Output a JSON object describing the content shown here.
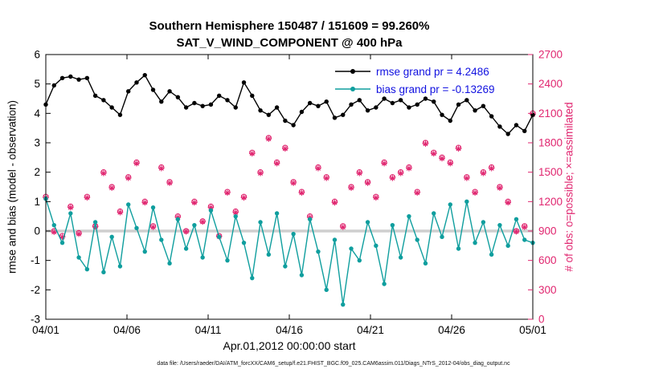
{
  "title": {
    "line1": "Southern Hemisphere 150487 / 151609 = 99.260%",
    "line2": "SAT_V_WIND_COMPONENT @ 400 hPa"
  },
  "axes": {
    "xlabel": "Apr.01,2012 00:00:00 start",
    "ylabel_left": "rmse and bias (model - observation)",
    "ylabel_right": "# of obs: o=possible; ×=assimilated"
  },
  "legend": [
    {
      "label": "rmse grand pr = 4.2486",
      "color": "#000000"
    },
    {
      "label": "bias grand pr = -0.13269",
      "color": "#0f9e9e"
    }
  ],
  "footer": "data file: /Users/raeder/DAI/ATM_forcXX/CAM6_setup/f.e21.FHIST_BGC.f09_025.CAM6assim.011/Diags_NTrS_2012-04/obs_diag_output.nc",
  "colors": {
    "rmse": "#000000",
    "bias": "#0f9e9e",
    "obs": "#e0256f",
    "zero_band": "#cfcfcf",
    "legend_text": "#1111e0",
    "axis_box": "#000000"
  },
  "chart_data": {
    "type": "line",
    "title": "Southern Hemisphere 150487 / 151609 = 99.260%",
    "subtitle": "SAT_V_WIND_COMPONENT @ 400 hPa",
    "xlabel": "Apr.01,2012 00:00:00 start",
    "ylabel": "rmse and bias (model - observation)",
    "y2label": "# of obs: o=possible; ×=assimilated",
    "grid": false,
    "legend_position": "top-right-inside",
    "zero_reference_line": 0,
    "x_range_days": [
      0,
      30
    ],
    "x_tick_days": [
      0,
      5,
      10,
      15,
      20,
      25,
      30
    ],
    "x_tick_labels": [
      "04/01",
      "04/06",
      "04/11",
      "04/16",
      "04/21",
      "04/26",
      "05/01"
    ],
    "ylim": [
      -3,
      6
    ],
    "y_ticks": [
      -3,
      -2,
      -1,
      0,
      1,
      2,
      3,
      4,
      5,
      6
    ],
    "y2lim": [
      0,
      2700
    ],
    "y2_ticks": [
      0,
      300,
      600,
      900,
      1200,
      1500,
      1800,
      2100,
      2400,
      2700
    ],
    "series": [
      {
        "name": "rmse",
        "axis": "left",
        "marker": "filled-circle",
        "color": "#000000",
        "values": [
          4.3,
          4.95,
          5.2,
          5.25,
          5.15,
          5.2,
          4.6,
          4.45,
          4.2,
          3.95,
          4.75,
          5.05,
          5.3,
          4.8,
          4.4,
          4.75,
          4.55,
          4.2,
          4.35,
          4.25,
          4.3,
          4.6,
          4.45,
          4.2,
          5.05,
          4.6,
          4.1,
          3.95,
          4.2,
          3.75,
          3.6,
          4.05,
          4.35,
          4.25,
          4.4,
          3.85,
          3.95,
          4.3,
          4.45,
          4.1,
          4.2,
          4.5,
          4.35,
          4.45,
          4.2,
          4.3,
          4.5,
          4.4,
          3.95,
          3.75,
          4.3,
          4.45,
          4.1,
          4.25,
          3.9,
          3.55,
          3.3,
          3.6,
          3.4,
          3.95
        ]
      },
      {
        "name": "bias",
        "axis": "left",
        "marker": "filled-circle",
        "color": "#0f9e9e",
        "values": [
          1.1,
          0.2,
          -0.4,
          0.6,
          -0.9,
          -1.3,
          0.3,
          -1.4,
          -0.2,
          -1.2,
          0.9,
          0.1,
          -0.7,
          0.8,
          -0.3,
          -1.1,
          0.4,
          -0.6,
          0.2,
          -0.9,
          0.7,
          -0.2,
          -1.0,
          0.5,
          -0.4,
          -1.6,
          0.3,
          -0.8,
          0.6,
          -1.2,
          -0.1,
          -1.5,
          0.4,
          -0.7,
          -2.0,
          -0.3,
          -2.5,
          -0.6,
          -1.0,
          0.3,
          -0.5,
          -1.8,
          0.2,
          -0.9,
          0.5,
          -0.3,
          -1.1,
          0.6,
          -0.2,
          0.9,
          -0.6,
          1.0,
          -0.4,
          0.3,
          -0.8,
          0.2,
          -0.5,
          0.4,
          -0.3,
          -0.4
        ]
      },
      {
        "name": "possible",
        "axis": "right",
        "marker": "circle",
        "color": "#e0256f",
        "values": [
          1250,
          900,
          850,
          1150,
          880,
          1250,
          950,
          1500,
          1350,
          1100,
          1450,
          1600,
          1200,
          950,
          1550,
          1400,
          1050,
          900,
          1200,
          1000,
          1150,
          850,
          1300,
          1100,
          1250,
          1700,
          1500,
          1850,
          1600,
          1750,
          1400,
          1300,
          1050,
          1550,
          1450,
          1200,
          950,
          1350,
          1500,
          1400,
          1250,
          1600,
          1450,
          1500,
          1550,
          1300,
          1800,
          1700,
          1650,
          1600,
          1750,
          1450,
          1300,
          1500,
          1550,
          1350,
          1200,
          900,
          950,
          2100
        ]
      },
      {
        "name": "assimilated",
        "axis": "right",
        "marker": "asterisk",
        "color": "#e0256f",
        "values": [
          1240,
          890,
          840,
          1140,
          870,
          1240,
          945,
          1490,
          1340,
          1090,
          1440,
          1590,
          1190,
          940,
          1540,
          1390,
          1040,
          895,
          1190,
          995,
          1140,
          845,
          1290,
          1090,
          1240,
          1690,
          1490,
          1840,
          1590,
          1740,
          1390,
          1290,
          1040,
          1540,
          1440,
          1190,
          940,
          1340,
          1490,
          1390,
          1240,
          1590,
          1440,
          1490,
          1540,
          1290,
          1790,
          1690,
          1640,
          1590,
          1740,
          1440,
          1290,
          1490,
          1540,
          1340,
          1190,
          895,
          940,
          2090
        ]
      }
    ]
  }
}
